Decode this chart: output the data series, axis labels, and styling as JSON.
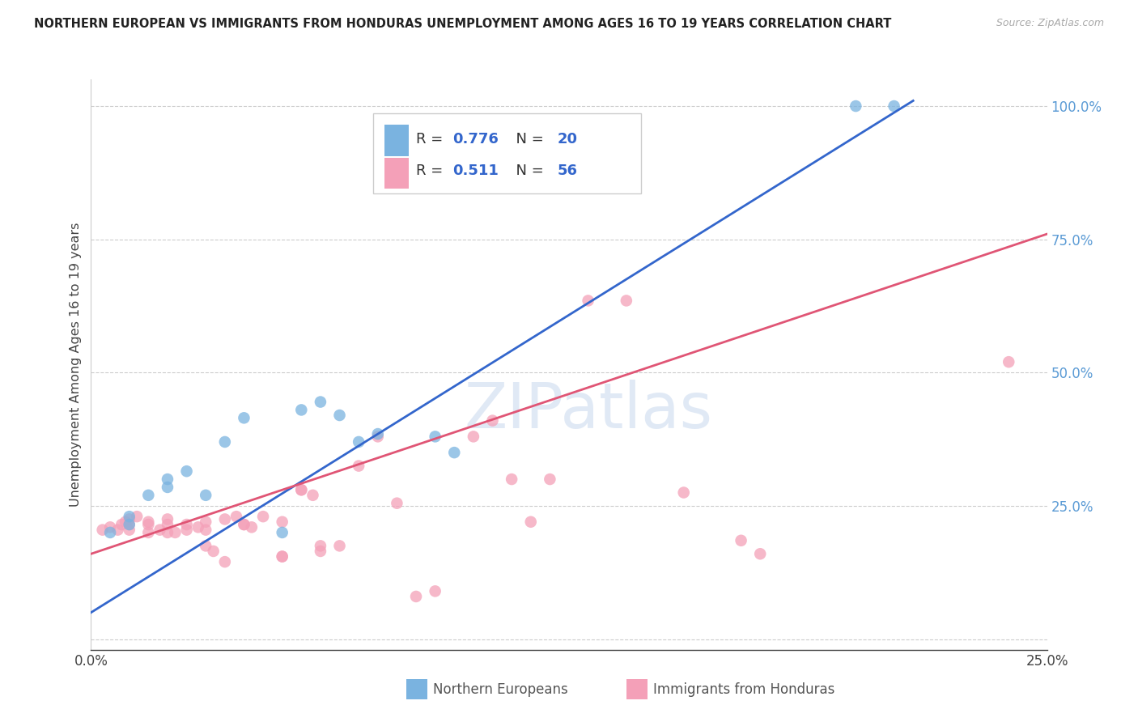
{
  "title": "NORTHERN EUROPEAN VS IMMIGRANTS FROM HONDURAS UNEMPLOYMENT AMONG AGES 16 TO 19 YEARS CORRELATION CHART",
  "source": "Source: ZipAtlas.com",
  "ylabel": "Unemployment Among Ages 16 to 19 years",
  "xlim": [
    0.0,
    0.25
  ],
  "ylim": [
    -0.02,
    1.05
  ],
  "xticks": [
    0.0,
    0.25
  ],
  "xticklabels": [
    "0.0%",
    "25.0%"
  ],
  "yticks_right": [
    0.25,
    0.5,
    0.75,
    1.0
  ],
  "yticklabels_right": [
    "25.0%",
    "50.0%",
    "75.0%",
    "100.0%"
  ],
  "blue_color": "#7ab3e0",
  "pink_color": "#f4a0b8",
  "blue_line_color": "#3366cc",
  "pink_line_color": "#e05575",
  "R_blue": "0.776",
  "N_blue": "20",
  "R_pink": "0.511",
  "N_pink": "56",
  "blue_line_x": [
    0.0,
    0.215
  ],
  "blue_line_y": [
    0.05,
    1.01
  ],
  "pink_line_x": [
    0.0,
    0.25
  ],
  "pink_line_y": [
    0.16,
    0.76
  ],
  "blue_scatter": [
    [
      0.005,
      0.2
    ],
    [
      0.01,
      0.215
    ],
    [
      0.01,
      0.23
    ],
    [
      0.015,
      0.27
    ],
    [
      0.02,
      0.285
    ],
    [
      0.02,
      0.3
    ],
    [
      0.025,
      0.315
    ],
    [
      0.03,
      0.27
    ],
    [
      0.035,
      0.37
    ],
    [
      0.04,
      0.415
    ],
    [
      0.05,
      0.2
    ],
    [
      0.055,
      0.43
    ],
    [
      0.06,
      0.445
    ],
    [
      0.065,
      0.42
    ],
    [
      0.07,
      0.37
    ],
    [
      0.075,
      0.385
    ],
    [
      0.09,
      0.38
    ],
    [
      0.095,
      0.35
    ],
    [
      0.2,
      1.0
    ],
    [
      0.21,
      1.0
    ]
  ],
  "pink_scatter": [
    [
      0.003,
      0.205
    ],
    [
      0.005,
      0.21
    ],
    [
      0.007,
      0.205
    ],
    [
      0.008,
      0.215
    ],
    [
      0.009,
      0.22
    ],
    [
      0.01,
      0.205
    ],
    [
      0.01,
      0.215
    ],
    [
      0.01,
      0.225
    ],
    [
      0.012,
      0.23
    ],
    [
      0.015,
      0.2
    ],
    [
      0.015,
      0.215
    ],
    [
      0.015,
      0.22
    ],
    [
      0.018,
      0.205
    ],
    [
      0.02,
      0.2
    ],
    [
      0.02,
      0.215
    ],
    [
      0.02,
      0.225
    ],
    [
      0.022,
      0.2
    ],
    [
      0.025,
      0.205
    ],
    [
      0.025,
      0.215
    ],
    [
      0.028,
      0.21
    ],
    [
      0.03,
      0.205
    ],
    [
      0.03,
      0.22
    ],
    [
      0.03,
      0.175
    ],
    [
      0.032,
      0.165
    ],
    [
      0.035,
      0.145
    ],
    [
      0.035,
      0.225
    ],
    [
      0.038,
      0.23
    ],
    [
      0.04,
      0.215
    ],
    [
      0.04,
      0.215
    ],
    [
      0.042,
      0.21
    ],
    [
      0.045,
      0.23
    ],
    [
      0.05,
      0.22
    ],
    [
      0.05,
      0.155
    ],
    [
      0.05,
      0.155
    ],
    [
      0.055,
      0.28
    ],
    [
      0.055,
      0.28
    ],
    [
      0.058,
      0.27
    ],
    [
      0.06,
      0.175
    ],
    [
      0.06,
      0.165
    ],
    [
      0.065,
      0.175
    ],
    [
      0.07,
      0.325
    ],
    [
      0.075,
      0.38
    ],
    [
      0.08,
      0.255
    ],
    [
      0.085,
      0.08
    ],
    [
      0.09,
      0.09
    ],
    [
      0.1,
      0.38
    ],
    [
      0.105,
      0.41
    ],
    [
      0.11,
      0.3
    ],
    [
      0.115,
      0.22
    ],
    [
      0.12,
      0.3
    ],
    [
      0.13,
      0.635
    ],
    [
      0.14,
      0.635
    ],
    [
      0.155,
      0.275
    ],
    [
      0.17,
      0.185
    ],
    [
      0.175,
      0.16
    ],
    [
      0.24,
      0.52
    ]
  ]
}
